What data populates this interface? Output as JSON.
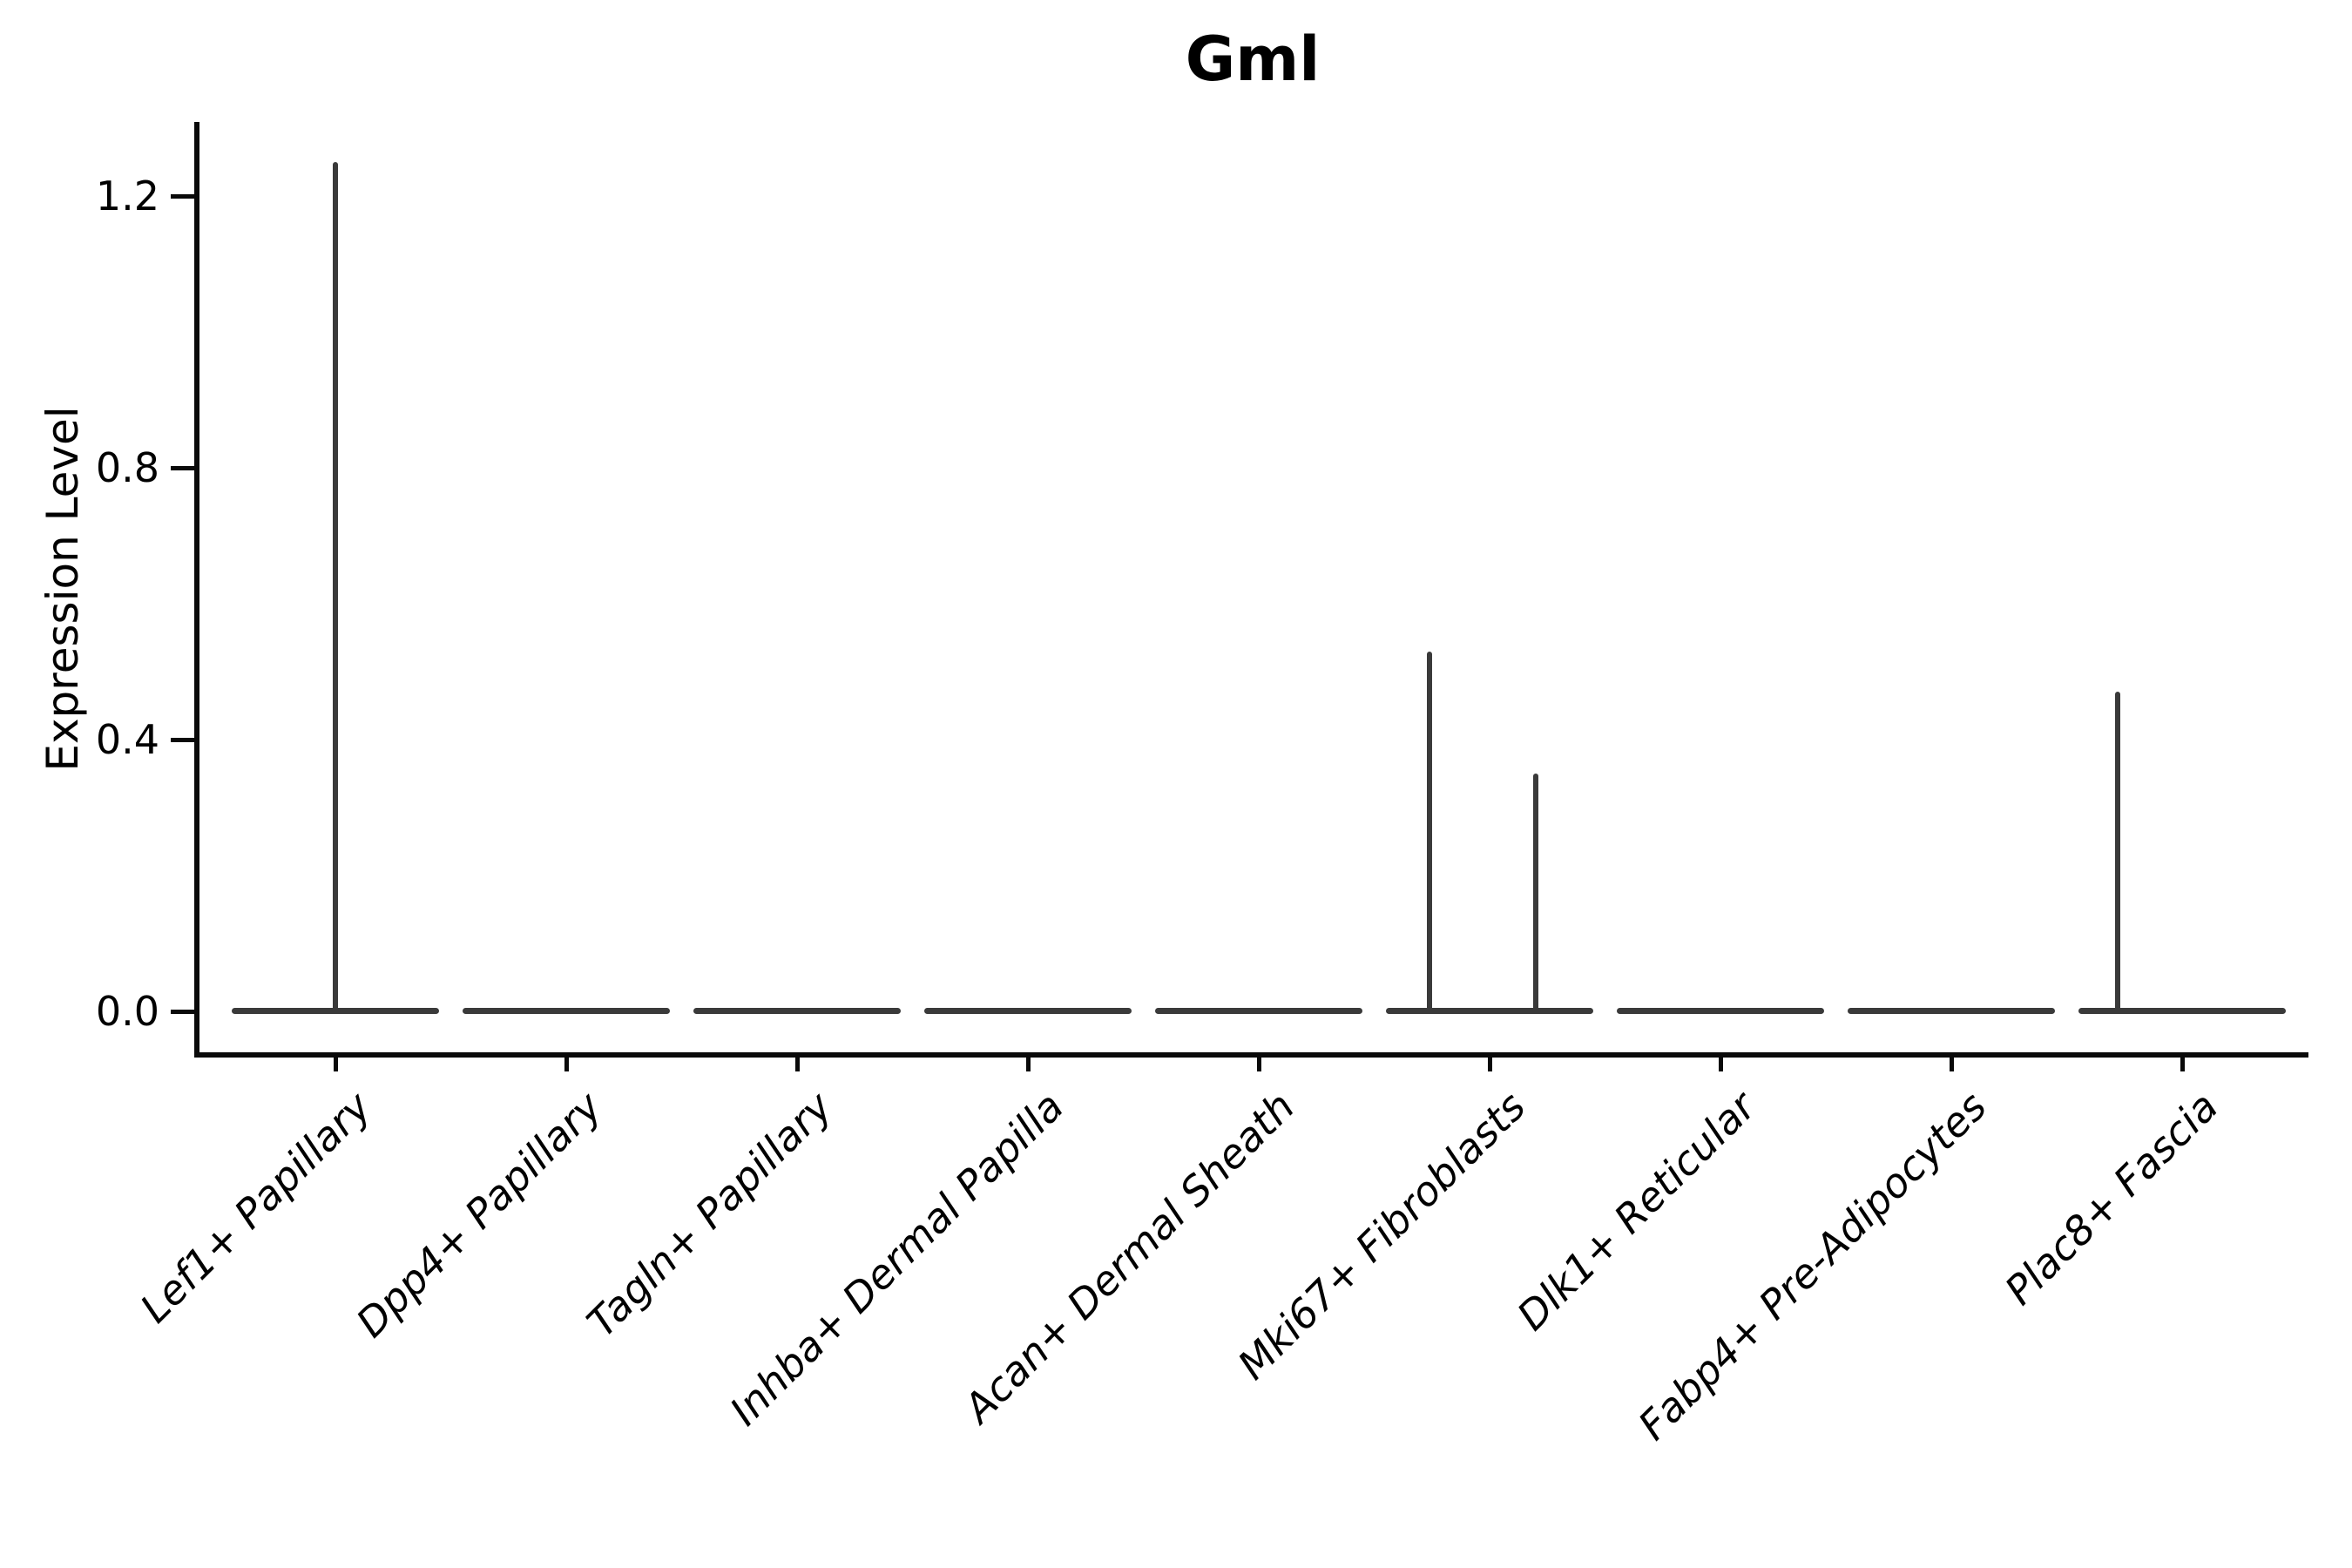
{
  "title": "Gml",
  "y_axis": {
    "label": "Expression Level",
    "tick_labels": [
      "0.0",
      "0.4",
      "0.8",
      "1.2"
    ]
  },
  "chart_data": {
    "type": "violin",
    "title": "Gml",
    "xlabel": "",
    "ylabel": "Expression Level",
    "ylim": [
      -0.06,
      1.31
    ],
    "y_ticks": [
      0.0,
      0.4,
      0.8,
      1.2
    ],
    "y_tick_labels": [
      "0.0",
      "0.4",
      "0.8",
      "1.2"
    ],
    "x_tick_rotation": 45,
    "grid": false,
    "legend": false,
    "categories": [
      "Lef1+ Papillary",
      "Dpp4+ Papillary",
      "Tagln+ Papillary",
      "Inhba+ Dermal Papilla",
      "Acan+ Dermal Sheath",
      "Mki67+ Fibroblasts",
      "Dlk1+ Reticular",
      "Fabp4+ Pre-Adipocytes",
      "Plac8+ Fascia"
    ],
    "violins": [
      {
        "category": "Lef1+ Papillary",
        "baseline": 0.0,
        "max": 1.25,
        "spikes": [
          {
            "offset": 0.0,
            "value": 1.25
          }
        ]
      },
      {
        "category": "Dpp4+ Papillary",
        "baseline": 0.0,
        "max": 0.0,
        "spikes": []
      },
      {
        "category": "Tagln+ Papillary",
        "baseline": 0.0,
        "max": 0.0,
        "spikes": []
      },
      {
        "category": "Inhba+ Dermal Papilla",
        "baseline": 0.0,
        "max": 0.0,
        "spikes": []
      },
      {
        "category": "Acan+ Dermal Sheath",
        "baseline": 0.0,
        "max": 0.0,
        "spikes": []
      },
      {
        "category": "Mki67+ Fibroblasts",
        "baseline": 0.0,
        "max": 0.53,
        "spikes": [
          {
            "offset": -0.26,
            "value": 0.53
          },
          {
            "offset": 0.2,
            "value": 0.35
          }
        ]
      },
      {
        "category": "Dlk1+ Reticular",
        "baseline": 0.0,
        "max": 0.0,
        "spikes": []
      },
      {
        "category": "Fabp4+ Pre-Adipocytes",
        "baseline": 0.0,
        "max": 0.0,
        "spikes": []
      },
      {
        "category": "Plac8+ Fascia",
        "baseline": 0.0,
        "max": 0.47,
        "spikes": [
          {
            "offset": -0.28,
            "value": 0.47
          }
        ]
      }
    ],
    "colors": {
      "violin_line": "#3a3a3a",
      "axis": "#0a0a0a",
      "text": "#000000"
    }
  }
}
